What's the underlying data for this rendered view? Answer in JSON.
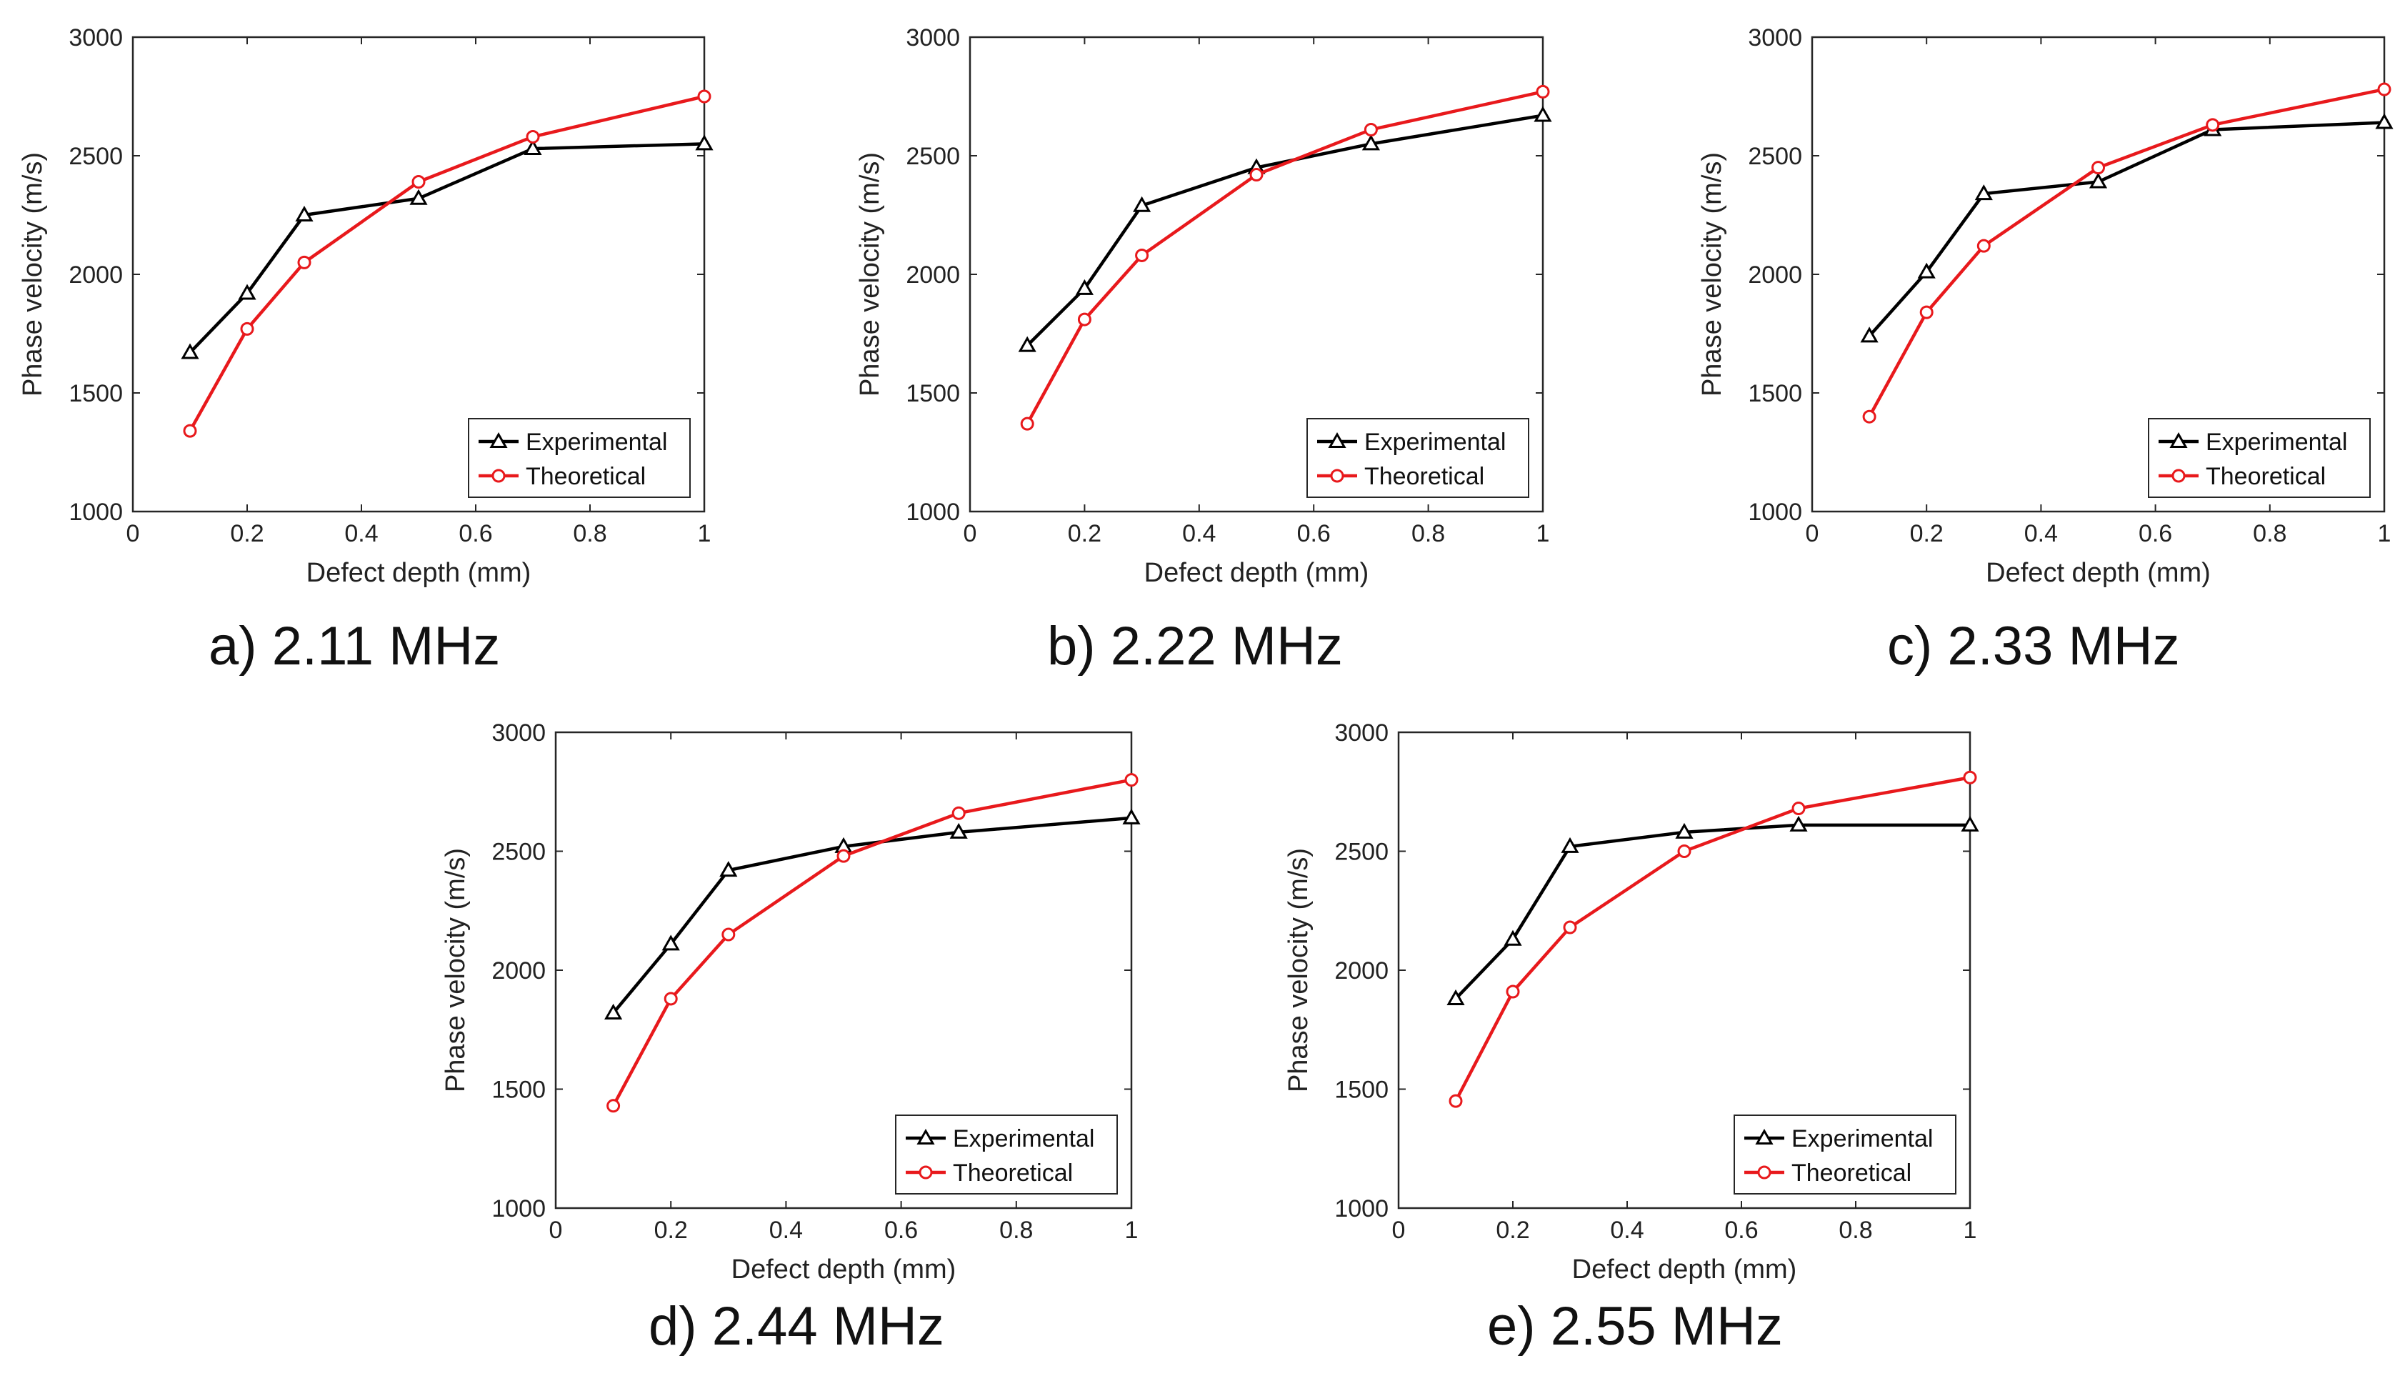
{
  "colors": {
    "experimental": "#000000",
    "theoretical": "#e8191c",
    "axis": "#262626",
    "background": "#ffffff"
  },
  "chart_data": [
    {
      "type": "line",
      "caption": "a) 2.11 MHz",
      "xlabel": "Defect depth (mm)",
      "ylabel": "Phase velocity (m/s)",
      "xlim": [
        0,
        1
      ],
      "ylim": [
        1000,
        3000
      ],
      "xticks": [
        "0",
        "0.2",
        "0.4",
        "0.6",
        "0.8",
        "1"
      ],
      "yticks": [
        "1000",
        "1500",
        "2000",
        "2500",
        "3000"
      ],
      "legend_position": "bottom-right",
      "grid": false,
      "series": [
        {
          "name": "Experimental",
          "marker": "triangle",
          "color": "#000000",
          "x": [
            0.1,
            0.2,
            0.3,
            0.5,
            0.7,
            1.0
          ],
          "y": [
            1670,
            1920,
            2250,
            2320,
            2530,
            2550
          ]
        },
        {
          "name": "Theoretical",
          "marker": "circle",
          "color": "#e8191c",
          "x": [
            0.1,
            0.2,
            0.3,
            0.5,
            0.7,
            1.0
          ],
          "y": [
            1340,
            1770,
            2050,
            2390,
            2580,
            2750
          ]
        }
      ]
    },
    {
      "type": "line",
      "caption": "b) 2.22 MHz",
      "xlabel": "Defect depth (mm)",
      "ylabel": "Phase velocity (m/s)",
      "xlim": [
        0,
        1
      ],
      "ylim": [
        1000,
        3000
      ],
      "xticks": [
        "0",
        "0.2",
        "0.4",
        "0.6",
        "0.8",
        "1"
      ],
      "yticks": [
        "1000",
        "1500",
        "2000",
        "2500",
        "3000"
      ],
      "legend_position": "bottom-right",
      "grid": false,
      "series": [
        {
          "name": "Experimental",
          "marker": "triangle",
          "color": "#000000",
          "x": [
            0.1,
            0.2,
            0.3,
            0.5,
            0.7,
            1.0
          ],
          "y": [
            1700,
            1940,
            2290,
            2450,
            2550,
            2670
          ]
        },
        {
          "name": "Theoretical",
          "marker": "circle",
          "color": "#e8191c",
          "x": [
            0.1,
            0.2,
            0.3,
            0.5,
            0.7,
            1.0
          ],
          "y": [
            1370,
            1810,
            2080,
            2420,
            2610,
            2770
          ]
        }
      ]
    },
    {
      "type": "line",
      "caption": "c) 2.33 MHz",
      "xlabel": "Defect depth (mm)",
      "ylabel": "Phase velocity (m/s)",
      "xlim": [
        0,
        1
      ],
      "ylim": [
        1000,
        3000
      ],
      "xticks": [
        "0",
        "0.2",
        "0.4",
        "0.6",
        "0.8",
        "1"
      ],
      "yticks": [
        "1000",
        "1500",
        "2000",
        "2500",
        "3000"
      ],
      "legend_position": "bottom-right",
      "grid": false,
      "series": [
        {
          "name": "Experimental",
          "marker": "triangle",
          "color": "#000000",
          "x": [
            0.1,
            0.2,
            0.3,
            0.5,
            0.7,
            1.0
          ],
          "y": [
            1740,
            2010,
            2340,
            2390,
            2610,
            2640
          ]
        },
        {
          "name": "Theoretical",
          "marker": "circle",
          "color": "#e8191c",
          "x": [
            0.1,
            0.2,
            0.3,
            0.5,
            0.7,
            1.0
          ],
          "y": [
            1400,
            1840,
            2120,
            2450,
            2630,
            2780
          ]
        }
      ]
    },
    {
      "type": "line",
      "caption": "d) 2.44 MHz",
      "xlabel": "Defect depth (mm)",
      "ylabel": "Phase velocity (m/s)",
      "xlim": [
        0,
        1
      ],
      "ylim": [
        1000,
        3000
      ],
      "xticks": [
        "0",
        "0.2",
        "0.4",
        "0.6",
        "0.8",
        "1"
      ],
      "yticks": [
        "1000",
        "1500",
        "2000",
        "2500",
        "3000"
      ],
      "legend_position": "bottom-right",
      "grid": false,
      "series": [
        {
          "name": "Experimental",
          "marker": "triangle",
          "color": "#000000",
          "x": [
            0.1,
            0.2,
            0.3,
            0.5,
            0.7,
            1.0
          ],
          "y": [
            1820,
            2110,
            2420,
            2520,
            2580,
            2640
          ]
        },
        {
          "name": "Theoretical",
          "marker": "circle",
          "color": "#e8191c",
          "x": [
            0.1,
            0.2,
            0.3,
            0.5,
            0.7,
            1.0
          ],
          "y": [
            1430,
            1880,
            2150,
            2480,
            2660,
            2800
          ]
        }
      ]
    },
    {
      "type": "line",
      "caption": "e) 2.55 MHz",
      "xlabel": "Defect depth (mm)",
      "ylabel": "Phase velocity (m/s)",
      "xlim": [
        0,
        1
      ],
      "ylim": [
        1000,
        3000
      ],
      "xticks": [
        "0",
        "0.2",
        "0.4",
        "0.6",
        "0.8",
        "1"
      ],
      "yticks": [
        "1000",
        "1500",
        "2000",
        "2500",
        "3000"
      ],
      "legend_position": "bottom-right",
      "grid": false,
      "series": [
        {
          "name": "Experimental",
          "marker": "triangle",
          "color": "#000000",
          "x": [
            0.1,
            0.2,
            0.3,
            0.5,
            0.7,
            1.0
          ],
          "y": [
            1880,
            2130,
            2520,
            2580,
            2610,
            2610
          ]
        },
        {
          "name": "Theoretical",
          "marker": "circle",
          "color": "#e8191c",
          "x": [
            0.1,
            0.2,
            0.3,
            0.5,
            0.7,
            1.0
          ],
          "y": [
            1450,
            1910,
            2180,
            2500,
            2680,
            2810
          ]
        }
      ]
    }
  ]
}
